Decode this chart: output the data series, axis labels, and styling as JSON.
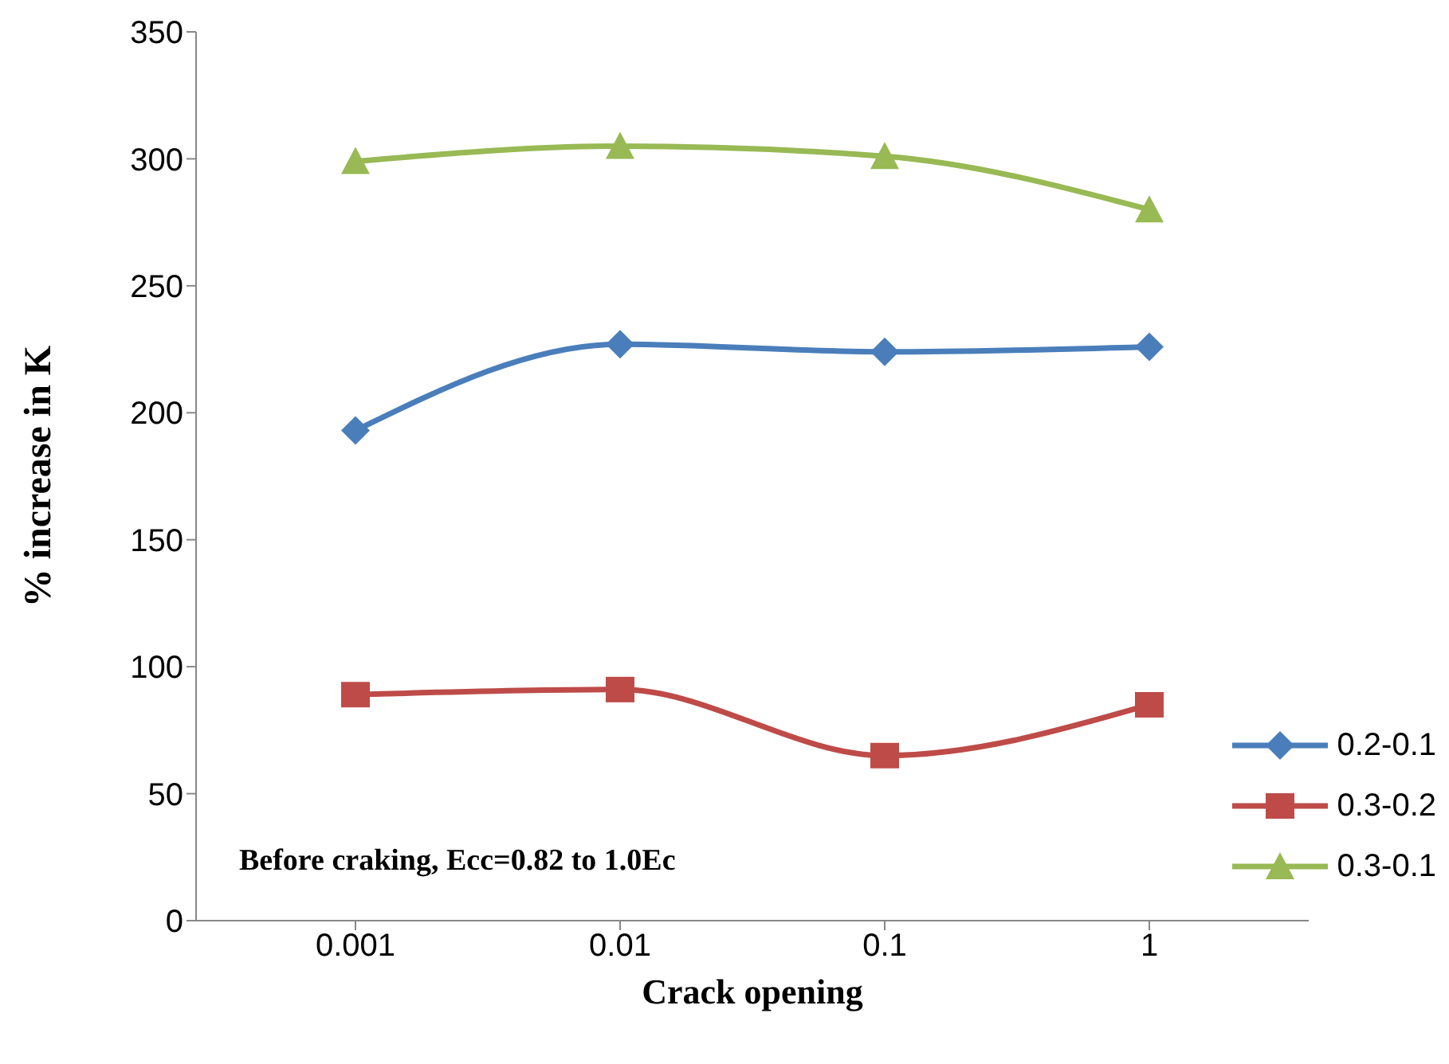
{
  "chart_data": {
    "type": "line",
    "xlabel": "Crack opening",
    "ylabel": "% increase in K",
    "categories": [
      "0.001",
      "0.01",
      "0.1",
      "1"
    ],
    "ylim": [
      0,
      350
    ],
    "yticks": [
      0,
      50,
      100,
      150,
      200,
      250,
      300,
      350
    ],
    "grid": false,
    "legend": "bottom right",
    "annotations": [
      "Before craking, Ecc=0.82 to 1.0Ec"
    ],
    "series": [
      {
        "name": "0.2-0.1",
        "color": "#4a7ebb",
        "marker": "diamond",
        "values": [
          193,
          227,
          224,
          226
        ]
      },
      {
        "name": "0.3-0.2",
        "color": "#be4b48",
        "marker": "square",
        "values": [
          89,
          91,
          65,
          85
        ]
      },
      {
        "name": "0.3-0.1",
        "color": "#98b954",
        "marker": "triangle",
        "values": [
          299,
          305,
          301,
          280
        ]
      }
    ]
  }
}
